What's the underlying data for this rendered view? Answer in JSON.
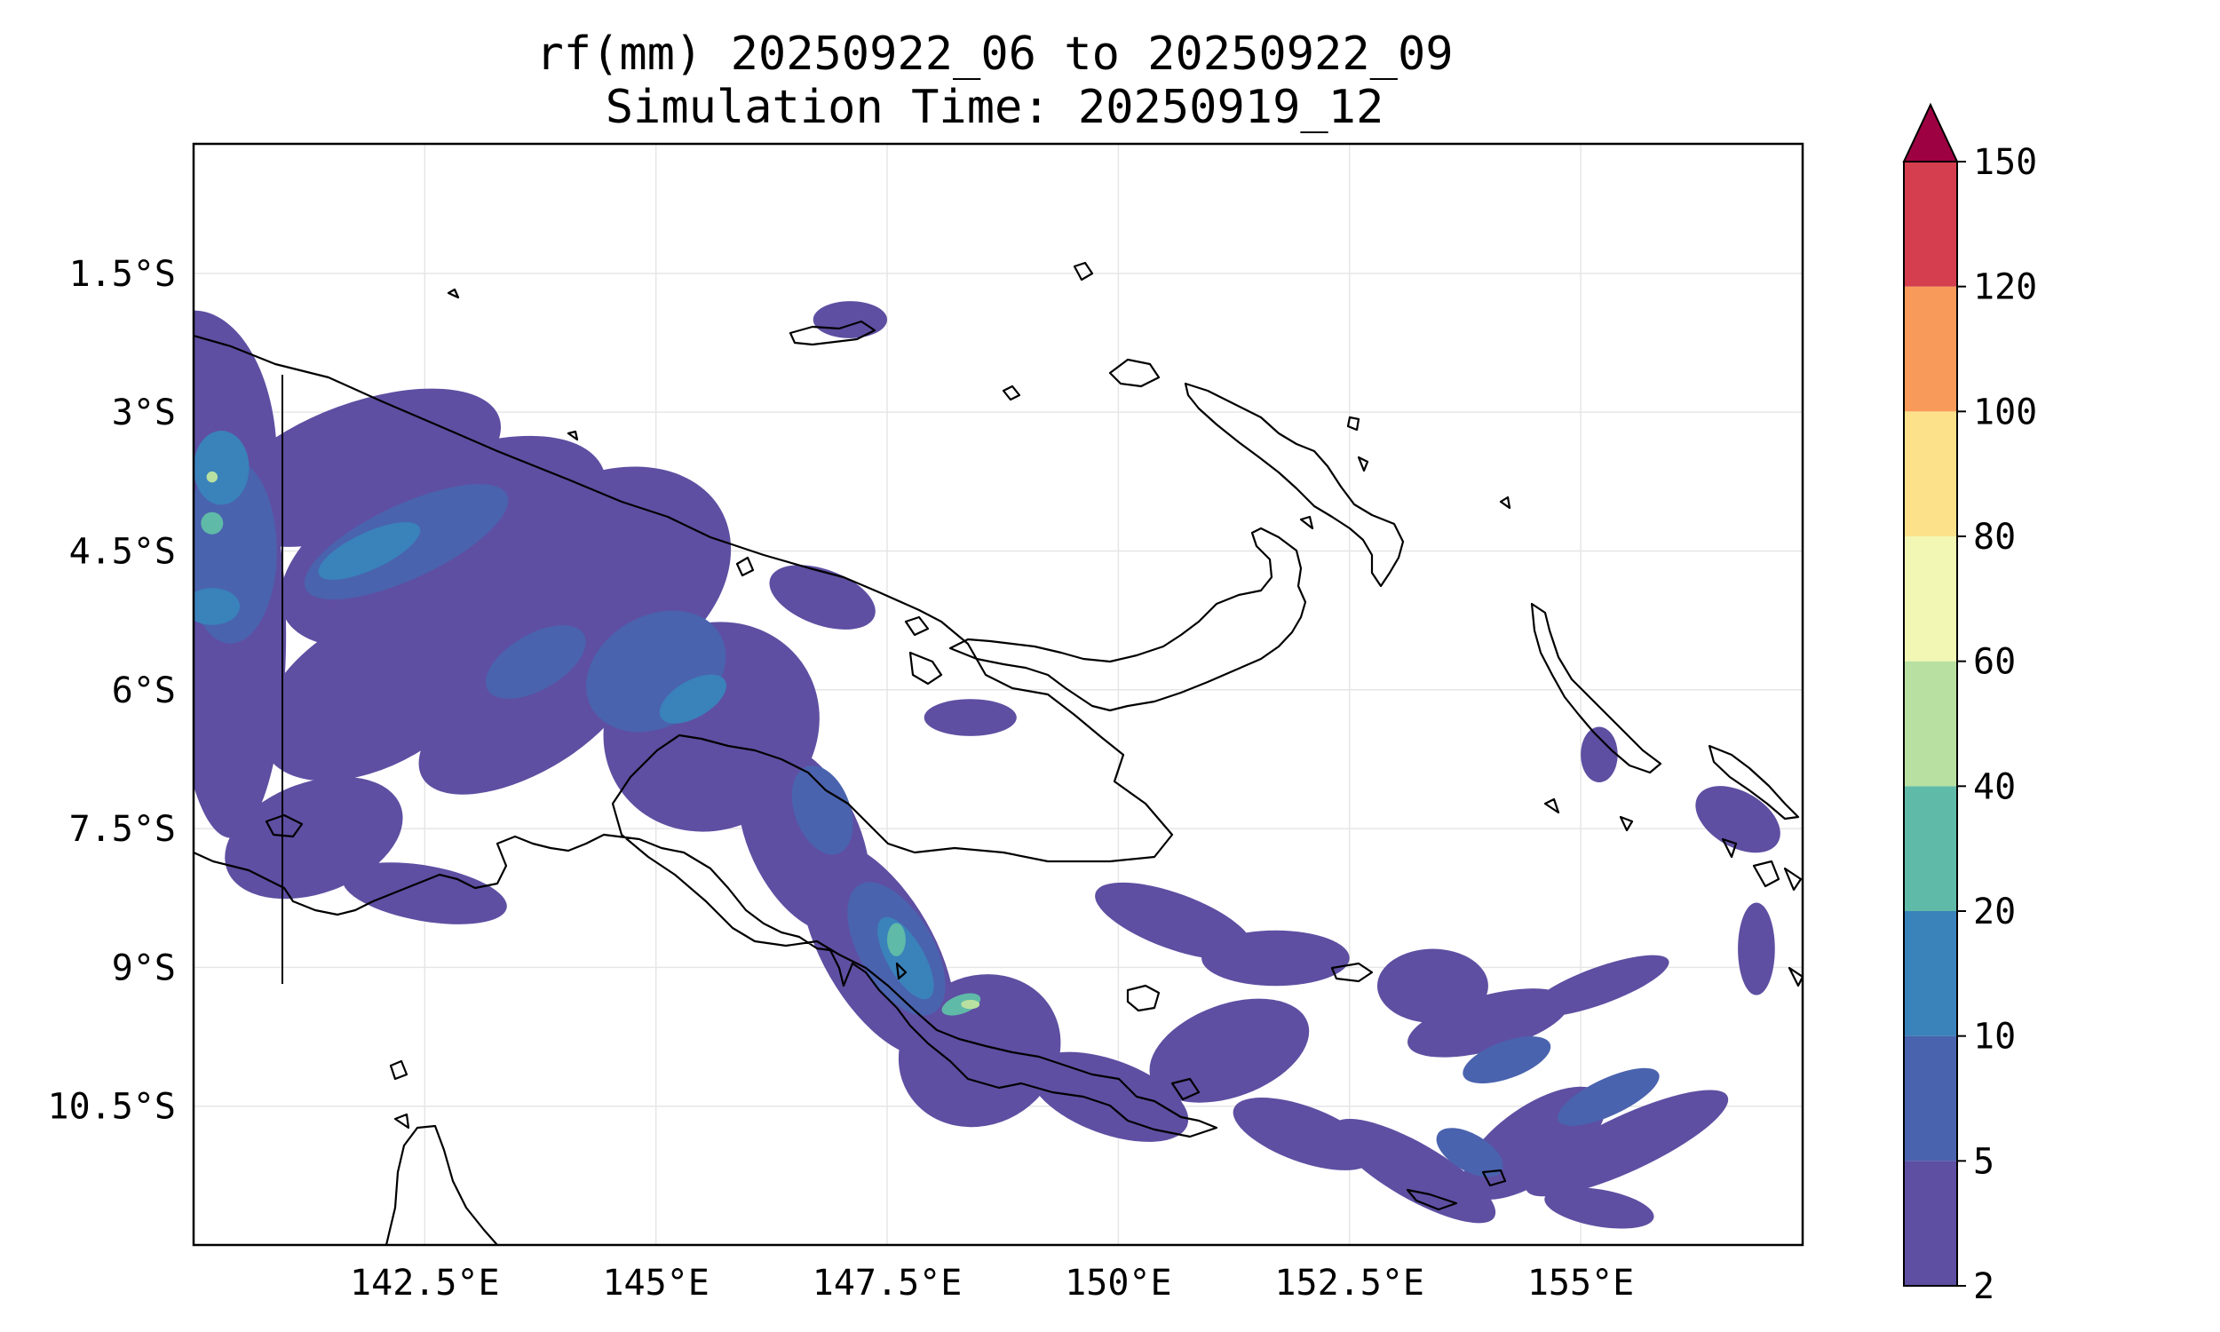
{
  "title": {
    "line1": "rf(mm) 20250922_06 to 20250922_09",
    "line2": "Simulation Time: 20250919_12"
  },
  "map": {
    "type": "filled-contour precipitation map",
    "lon_range": [
      140.0,
      157.4
    ],
    "lat_range": [
      -12.0,
      -0.1
    ],
    "gridlines": true,
    "lon_ticks": [
      {
        "value": 142.5,
        "label": "142.5°E"
      },
      {
        "value": 145.0,
        "label": "145°E"
      },
      {
        "value": 147.5,
        "label": "147.5°E"
      },
      {
        "value": 150.0,
        "label": "150°E"
      },
      {
        "value": 152.5,
        "label": "152.5°E"
      },
      {
        "value": 155.0,
        "label": "155°E"
      }
    ],
    "lat_ticks": [
      {
        "value": -1.5,
        "label": "1.5°S"
      },
      {
        "value": -3.0,
        "label": "3°S"
      },
      {
        "value": -4.5,
        "label": "4.5°S"
      },
      {
        "value": -6.0,
        "label": "6°S"
      },
      {
        "value": -7.5,
        "label": "7.5°S"
      },
      {
        "value": -9.0,
        "label": "9°S"
      },
      {
        "value": -10.5,
        "label": "10.5°S"
      }
    ]
  },
  "colorbar": {
    "extend": "max",
    "extend_color": "#9e0142",
    "levels": [
      {
        "label": "2",
        "value": 2
      },
      {
        "label": "5",
        "value": 5
      },
      {
        "label": "10",
        "value": 10
      },
      {
        "label": "20",
        "value": 20
      },
      {
        "label": "40",
        "value": 40
      },
      {
        "label": "60",
        "value": 60
      },
      {
        "label": "80",
        "value": 80
      },
      {
        "label": "100",
        "value": 100
      },
      {
        "label": "120",
        "value": 120
      },
      {
        "label": "150",
        "value": 150
      }
    ],
    "colors": [
      "#5e4fa2",
      "#4a63ae",
      "#3a82ba",
      "#5fbaa8",
      "#b8e0a0",
      "#f2f8b4",
      "#fde08a",
      "#f89b5a",
      "#d53e4f"
    ]
  },
  "rain_areas": [
    {
      "level": 0,
      "lon": 140.0,
      "lat": -3.5,
      "rx": 0.9,
      "ry": 1.6,
      "rot": 0
    },
    {
      "level": 0,
      "lon": 140.4,
      "lat": -5.4,
      "rx": 0.6,
      "ry": 2.2,
      "rot": 0
    },
    {
      "level": 0,
      "lon": 141.8,
      "lat": -3.6,
      "rx": 1.6,
      "ry": 0.7,
      "rot": -20
    },
    {
      "level": 0,
      "lon": 142.7,
      "lat": -4.4,
      "rx": 1.9,
      "ry": 0.9,
      "rot": -25
    },
    {
      "level": 0,
      "lon": 144.4,
      "lat": -4.8,
      "rx": 1.5,
      "ry": 1.1,
      "rot": -30
    },
    {
      "level": 0,
      "lon": 142.0,
      "lat": -6.0,
      "rx": 1.4,
      "ry": 0.8,
      "rot": -30
    },
    {
      "level": 0,
      "lon": 143.6,
      "lat": -6.3,
      "rx": 1.3,
      "ry": 0.6,
      "rot": -30
    },
    {
      "level": 0,
      "lon": 145.6,
      "lat": -6.4,
      "rx": 1.2,
      "ry": 1.1,
      "rot": -35
    },
    {
      "level": 0,
      "lon": 141.3,
      "lat": -7.6,
      "rx": 1.0,
      "ry": 0.6,
      "rot": -20
    },
    {
      "level": 0,
      "lon": 142.5,
      "lat": -8.2,
      "rx": 0.9,
      "ry": 0.3,
      "rot": 10
    },
    {
      "level": 0,
      "lon": 146.6,
      "lat": -7.6,
      "rx": 0.6,
      "ry": 1.1,
      "rot": -25
    },
    {
      "level": 0,
      "lon": 147.4,
      "lat": -8.8,
      "rx": 0.6,
      "ry": 1.3,
      "rot": -30
    },
    {
      "level": 0,
      "lon": 148.5,
      "lat": -9.9,
      "rx": 0.9,
      "ry": 0.8,
      "rot": -30
    },
    {
      "level": 0,
      "lon": 149.9,
      "lat": -10.4,
      "rx": 0.9,
      "ry": 0.4,
      "rot": 20
    },
    {
      "level": 0,
      "lon": 146.8,
      "lat": -5.0,
      "rx": 0.6,
      "ry": 0.3,
      "rot": 20
    },
    {
      "level": 0,
      "lon": 148.4,
      "lat": -6.3,
      "rx": 0.5,
      "ry": 0.2,
      "rot": 0
    },
    {
      "level": 0,
      "lon": 150.6,
      "lat": -8.5,
      "rx": 0.9,
      "ry": 0.3,
      "rot": 20
    },
    {
      "level": 0,
      "lon": 151.7,
      "lat": -8.9,
      "rx": 0.8,
      "ry": 0.3,
      "rot": 0
    },
    {
      "level": 0,
      "lon": 151.2,
      "lat": -9.9,
      "rx": 0.9,
      "ry": 0.5,
      "rot": -20
    },
    {
      "level": 0,
      "lon": 153.4,
      "lat": -9.2,
      "rx": 0.6,
      "ry": 0.4,
      "rot": 0
    },
    {
      "level": 0,
      "lon": 154.0,
      "lat": -9.6,
      "rx": 0.9,
      "ry": 0.3,
      "rot": -15
    },
    {
      "level": 0,
      "lon": 155.2,
      "lat": -9.2,
      "rx": 0.8,
      "ry": 0.2,
      "rot": -20
    },
    {
      "level": 0,
      "lon": 152.0,
      "lat": -10.8,
      "rx": 0.8,
      "ry": 0.3,
      "rot": 20
    },
    {
      "level": 0,
      "lon": 153.2,
      "lat": -11.2,
      "rx": 1.0,
      "ry": 0.3,
      "rot": 30
    },
    {
      "level": 0,
      "lon": 154.5,
      "lat": -10.9,
      "rx": 0.9,
      "ry": 0.4,
      "rot": -35
    },
    {
      "level": 0,
      "lon": 155.5,
      "lat": -10.9,
      "rx": 1.2,
      "ry": 0.3,
      "rot": -25
    },
    {
      "level": 0,
      "lon": 155.2,
      "lat": -11.6,
      "rx": 0.6,
      "ry": 0.2,
      "rot": 10
    },
    {
      "level": 0,
      "lon": 156.7,
      "lat": -7.4,
      "rx": 0.5,
      "ry": 0.3,
      "rot": 30
    },
    {
      "level": 0,
      "lon": 156.9,
      "lat": -8.8,
      "rx": 0.2,
      "ry": 0.5,
      "rot": 0
    },
    {
      "level": 0,
      "lon": 155.2,
      "lat": -6.7,
      "rx": 0.2,
      "ry": 0.3,
      "rot": 0
    },
    {
      "level": 0,
      "lon": 147.1,
      "lat": -2.0,
      "rx": 0.4,
      "ry": 0.2,
      "rot": 0
    },
    {
      "level": 1,
      "lon": 140.4,
      "lat": -4.5,
      "rx": 0.5,
      "ry": 1.0,
      "rot": 0
    },
    {
      "level": 1,
      "lon": 142.3,
      "lat": -4.4,
      "rx": 1.2,
      "ry": 0.4,
      "rot": -25
    },
    {
      "level": 1,
      "lon": 145.0,
      "lat": -5.8,
      "rx": 0.8,
      "ry": 0.6,
      "rot": -30
    },
    {
      "level": 1,
      "lon": 143.7,
      "lat": -5.7,
      "rx": 0.6,
      "ry": 0.3,
      "rot": -30
    },
    {
      "level": 1,
      "lon": 147.6,
      "lat": -8.8,
      "rx": 0.4,
      "ry": 0.8,
      "rot": -30
    },
    {
      "level": 1,
      "lon": 146.8,
      "lat": -7.3,
      "rx": 0.3,
      "ry": 0.5,
      "rot": -20
    },
    {
      "level": 1,
      "lon": 154.2,
      "lat": -10.0,
      "rx": 0.5,
      "ry": 0.2,
      "rot": -20
    },
    {
      "level": 1,
      "lon": 155.3,
      "lat": -10.4,
      "rx": 0.6,
      "ry": 0.2,
      "rot": -25
    },
    {
      "level": 1,
      "lon": 153.8,
      "lat": -11.0,
      "rx": 0.4,
      "ry": 0.2,
      "rot": 30
    },
    {
      "level": 2,
      "lon": 140.3,
      "lat": -3.6,
      "rx": 0.3,
      "ry": 0.4,
      "rot": 0
    },
    {
      "level": 2,
      "lon": 141.9,
      "lat": -4.5,
      "rx": 0.6,
      "ry": 0.2,
      "rot": -25
    },
    {
      "level": 2,
      "lon": 145.4,
      "lat": -6.1,
      "rx": 0.4,
      "ry": 0.2,
      "rot": -30
    },
    {
      "level": 2,
      "lon": 147.7,
      "lat": -8.9,
      "rx": 0.2,
      "ry": 0.5,
      "rot": -30
    },
    {
      "level": 2,
      "lon": 140.2,
      "lat": -5.1,
      "rx": 0.3,
      "ry": 0.2,
      "rot": 0
    },
    {
      "level": 3,
      "lon": 140.2,
      "lat": -4.2,
      "rx": 0.12,
      "ry": 0.12,
      "rot": 0
    },
    {
      "level": 3,
      "lon": 148.3,
      "lat": -9.4,
      "rx": 0.22,
      "ry": 0.1,
      "rot": -20
    },
    {
      "level": 3,
      "lon": 147.6,
      "lat": -8.7,
      "rx": 0.1,
      "ry": 0.18,
      "rot": 0
    },
    {
      "level": 4,
      "lon": 148.4,
      "lat": -9.4,
      "rx": 0.1,
      "ry": 0.05,
      "rot": 0
    },
    {
      "level": 4,
      "lon": 140.2,
      "lat": -3.7,
      "rx": 0.06,
      "ry": 0.06,
      "rot": 0
    }
  ]
}
